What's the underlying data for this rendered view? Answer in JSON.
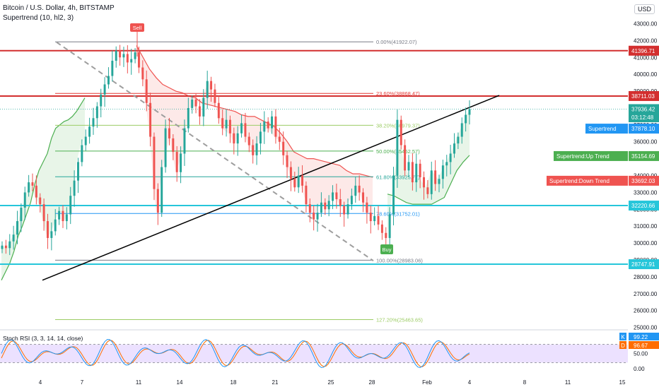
{
  "header": {
    "title": "Bitcoin / U.S. Dollar, 4h, BITSTAMP",
    "indicator": "Supertrend (10, hl2, 3)",
    "currency": "USD"
  },
  "chart_data": {
    "type": "candlestick",
    "price_axis": {
      "ylim": [
        24900,
        44400
      ],
      "ticks": [
        "43000.00",
        "42000.00",
        "41000.00",
        "40000.00",
        "39000.00",
        "38000.00",
        "37000.00",
        "36000.00",
        "35000.00",
        "34000.00",
        "33000.00",
        "32000.00",
        "31000.00",
        "30000.00",
        "29000.00",
        "28000.00",
        "27000.00",
        "26000.00",
        "25000.00"
      ]
    },
    "time_axis": {
      "labels": [
        "4",
        "7",
        "11",
        "14",
        "18",
        "21",
        "25",
        "28",
        "Feb",
        "4",
        "8",
        "11",
        "15"
      ]
    },
    "horizontal_levels": [
      {
        "label": "41396.71",
        "price": 41396.71,
        "color": "#d32f2f"
      },
      {
        "label": "38711.03",
        "price": 38711.03,
        "color": "#d32f2f"
      },
      {
        "label": "32220.66",
        "price": 32220.66,
        "color": "#26c6da"
      },
      {
        "label": "28747.91",
        "price": 28747.91,
        "color": "#26c6da"
      }
    ],
    "fibonacci": [
      {
        "label": "0.00%(41922.07)",
        "price": 41922.07,
        "color": "#787b86"
      },
      {
        "label": "23.60%(38868.47)",
        "price": 38868.47,
        "color": "#e53935"
      },
      {
        "label": "38.20%(36979.37)",
        "price": 36979.37,
        "color": "#9ccc65"
      },
      {
        "label": "50.00%(35452.57)",
        "price": 35452.57,
        "color": "#4caf50"
      },
      {
        "label": "61.80%(33925.77)",
        "price": 33925.77,
        "color": "#26a69a"
      },
      {
        "label": "78.60%(31752.01)",
        "price": 31752.01,
        "color": "#2196f3"
      },
      {
        "label": "100.00%(28983.06)",
        "price": 28983.06,
        "color": "#787b86"
      },
      {
        "label": "127.20%(25463.65)",
        "price": 25463.65,
        "color": "#9ccc65"
      }
    ],
    "price_tags": [
      {
        "label": "37936.42",
        "price": 37936.42,
        "color": "#26a69a"
      },
      {
        "label": "03:12:48",
        "price": 37450,
        "color": "#26a69a"
      },
      {
        "label": "Supertrend",
        "value": "37878.10",
        "price": 36780,
        "color": "#2196f3"
      },
      {
        "label": "Supertrend:Up Trend",
        "value": "35154.69",
        "price": 35154.69,
        "color": "#4caf50"
      },
      {
        "label": "Supertrend:Down Trend",
        "value": "33692.03",
        "price": 33692.03,
        "color": "#ef5350"
      }
    ],
    "signals": [
      {
        "label": "Sell",
        "color": "#ef5350"
      },
      {
        "label": "Buy",
        "color": "#4caf50"
      }
    ],
    "closes": [
      29850,
      29700,
      30100,
      30500,
      31300,
      32100,
      33000,
      33600,
      33400,
      32700,
      32300,
      31300,
      30300,
      30700,
      31400,
      31900,
      31300,
      31700,
      32800,
      33700,
      34800,
      35800,
      36300,
      36900,
      37400,
      38100,
      38800,
      39400,
      39900,
      40800,
      41400,
      41000,
      41200,
      40700,
      40900,
      41300,
      40400,
      39700,
      38300,
      36300,
      33200,
      31800,
      34500,
      36800,
      36200,
      35400,
      34200,
      35300,
      36800,
      38000,
      38500,
      38100,
      37500,
      38600,
      39600,
      39100,
      38300,
      37400,
      36800,
      37300,
      36500,
      35900,
      36500,
      37100,
      36300,
      35800,
      35200,
      35900,
      36600,
      37200,
      36800,
      37500,
      36300,
      36000,
      35200,
      34500,
      33800,
      33300,
      34000,
      33400,
      32300,
      31800,
      31400,
      31800,
      32400,
      32000,
      32500,
      33000,
      32600,
      32200,
      31700,
      32300,
      32800,
      33400,
      33000,
      32400,
      31800,
      31300,
      31600,
      31100,
      30600,
      30300,
      31700,
      34000,
      37300,
      35800,
      34300,
      34800,
      33600,
      34700,
      33900,
      33300,
      32900,
      34300,
      33500,
      33800,
      34600,
      34800,
      35300,
      35900,
      36300,
      37100,
      37600,
      37936
    ],
    "supertrend": {
      "segments": [
        {
          "direction": "up",
          "values": [
            27800,
            28300,
            28800,
            29500,
            30400,
            31000,
            31700,
            32400,
            33500,
            34300,
            34800,
            35300,
            36200,
            36800,
            37000,
            37200,
            37300,
            37500,
            37800,
            38200,
            38600
          ]
        },
        {
          "direction": "down",
          "values": [
            41700,
            41000,
            40300,
            39800,
            39400,
            39200,
            39000,
            38900,
            38700,
            38600,
            38300,
            38200,
            38100,
            38000,
            37900,
            37800,
            37600,
            37500,
            37500,
            37300,
            37100,
            36900,
            36500,
            36000,
            35400,
            35200,
            35000,
            35000,
            34900,
            34800,
            34700,
            34600,
            34300,
            34100,
            34100,
            34000,
            33900
          ]
        },
        {
          "direction": "up",
          "values": [
            32900,
            32800,
            32600,
            32400,
            32300,
            32300,
            32300,
            32300,
            32500,
            32700,
            33500,
            34300,
            34800,
            35200
          ]
        }
      ]
    }
  },
  "stoch_rsi": {
    "label": "Stoch RSI (3, 3, 14, 14, close)",
    "k_label": "K",
    "k_value": "99.22",
    "d_label": "D",
    "d_value": "96.67",
    "ticks": [
      "50.00",
      "0.00"
    ],
    "k_color": "#2196f3",
    "d_color": "#ff6d00"
  }
}
